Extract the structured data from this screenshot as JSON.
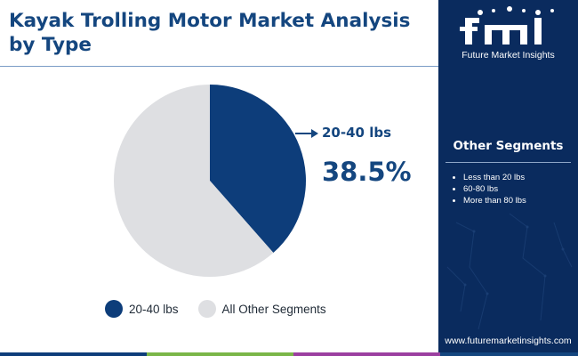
{
  "title": "Kayak Trolling Motor Market Analysis by Type",
  "chart_data": {
    "type": "pie",
    "categories": [
      "20-40 lbs",
      "All Other Segments"
    ],
    "values": [
      38.5,
      61.5
    ],
    "colors": [
      "#0d3d7a",
      "#dedfe2"
    ],
    "callout": {
      "label": "20-40 lbs",
      "value": "38.5%"
    },
    "legend_position": "bottom"
  },
  "legend": [
    {
      "label": "20-40 lbs",
      "color": "#0d3d7a"
    },
    {
      "label": "All Other Segments",
      "color": "#dedfe2"
    }
  ],
  "sidebar": {
    "logo_text": "Future Market Insights",
    "heading": "Other Segments",
    "items": [
      "Less than 20 lbs",
      "60-80 lbs",
      "More than 80 lbs"
    ],
    "website": "www.futuremarketinsights.com"
  },
  "colors": {
    "brand": "#14467f",
    "panel": "#0a2b5e",
    "bottom_bar": [
      "#0d3d7a",
      "#7ab648",
      "#9b3fa0",
      "#14467f"
    ]
  }
}
